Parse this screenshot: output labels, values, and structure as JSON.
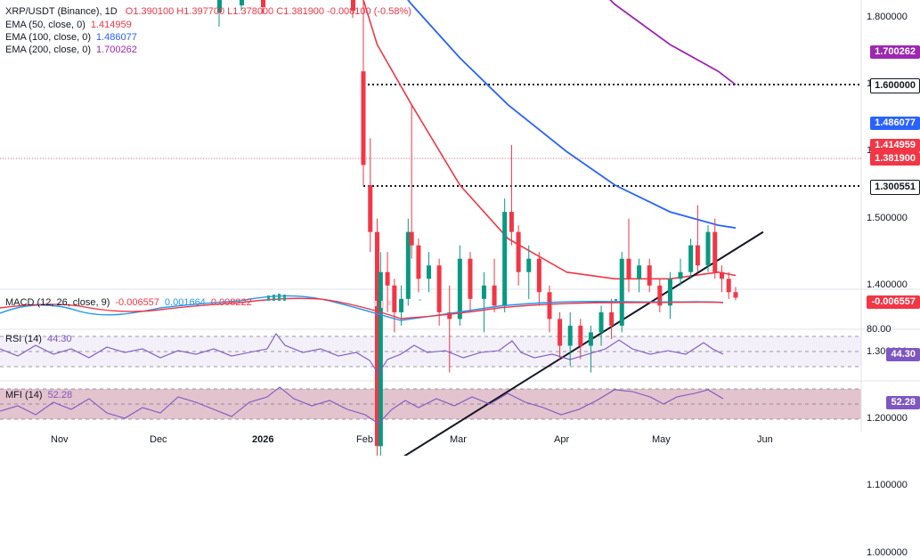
{
  "header": {
    "symbol": "XRP/USDT (Binance), 1D",
    "ohlc": "O1.390100  H1.397700  L1.378000  C1.381900  -0.008100 (-0.58%)",
    "ema50": {
      "label": "EMA (50, close, 0)",
      "value": "1.414959"
    },
    "ema100": {
      "label": "EMA (100, close, 0)",
      "value": "1.486077"
    },
    "ema200": {
      "label": "EMA (200, close, 0)",
      "value": "1.700262"
    }
  },
  "price_tags": {
    "ema200": "1.700262",
    "level_top": "1.600000",
    "ema100": "1.486077",
    "ema50": "1.414959",
    "last": "1.381900",
    "level_bottom": "1.300551"
  },
  "indicators": {
    "macd": {
      "label": "MACD (12, 26, close, 9)",
      "hist": "-0.006557",
      "macd": "0.001664",
      "signal": "0.008222",
      "tag": "-0.006557"
    },
    "rsi": {
      "label": "RSI (14)",
      "value": "44.30",
      "tag": "44.30",
      "level": "80.00"
    },
    "mfi": {
      "label": "MFI (14)",
      "value": "52.28",
      "tag": "52.28"
    }
  },
  "colors": {
    "up": "#089981",
    "down": "#f23645",
    "ema50": "#f23645",
    "ema100": "#2962ff",
    "ema200": "#9c27b0",
    "macd": "#2196f3",
    "signal": "#f23645",
    "rsi": "#7e57c2",
    "mfi": "#7e57c2"
  },
  "chart_data": {
    "type": "line",
    "title": "XRP/USDT (Binance), 1D",
    "price_axis_ticks": [
      "1.800000",
      "1.700000",
      "1.600000",
      "1.500000",
      "1.400000",
      "1.300000",
      "1.200000",
      "1.100000",
      "1.000000"
    ],
    "time_axis_ticks": [
      "Nov",
      "Dec",
      "2026",
      "Feb",
      "Mar",
      "Apr",
      "May",
      "Jun"
    ],
    "ylim": [
      0.97,
      1.88
    ],
    "last_close": 1.3819,
    "horizontal_levels": [
      1.6,
      1.300551
    ],
    "trendline": {
      "from": [
        "2026-02-02",
        1.11
      ],
      "to": [
        "2026-05-28",
        1.48
      ]
    },
    "series": [
      {
        "name": "EMA (50, close, 0)",
        "x": [
          "2026-01-30",
          "2026-02-05",
          "2026-02-15",
          "2026-03-01",
          "2026-03-15",
          "2026-04-01",
          "2026-04-15",
          "2026-05-01",
          "2026-05-15",
          "2026-05-20"
        ],
        "values": [
          1.86,
          1.76,
          1.67,
          1.55,
          1.47,
          1.42,
          1.41,
          1.41,
          1.42,
          1.415
        ]
      },
      {
        "name": "EMA (100, close, 0)",
        "x": [
          "2026-02-01",
          "2026-02-15",
          "2026-03-01",
          "2026-03-15",
          "2026-04-01",
          "2026-04-15",
          "2026-05-01",
          "2026-05-15",
          "2026-05-20"
        ],
        "values": [
          1.91,
          1.82,
          1.74,
          1.67,
          1.6,
          1.55,
          1.51,
          1.49,
          1.486
        ]
      },
      {
        "name": "EMA (200, close, 0)",
        "x": [
          "2026-04-05",
          "2026-04-15",
          "2026-05-01",
          "2026-05-15",
          "2026-05-20"
        ],
        "values": [
          1.87,
          1.82,
          1.76,
          1.72,
          1.7
        ]
      }
    ],
    "candles": [
      {
        "date": "2026-02-01",
        "o": 1.72,
        "h": 1.83,
        "l": 1.55,
        "c": 1.58
      },
      {
        "date": "2026-02-03",
        "o": 1.55,
        "h": 1.62,
        "l": 1.45,
        "c": 1.48
      },
      {
        "date": "2026-02-05",
        "o": 1.48,
        "h": 1.5,
        "l": 1.11,
        "c": 1.16
      },
      {
        "date": "2026-02-06",
        "o": 1.16,
        "h": 1.45,
        "l": 1.12,
        "c": 1.42
      },
      {
        "date": "2026-02-08",
        "o": 1.42,
        "h": 1.45,
        "l": 1.36,
        "c": 1.4
      },
      {
        "date": "2026-02-10",
        "o": 1.4,
        "h": 1.41,
        "l": 1.33,
        "c": 1.36
      },
      {
        "date": "2026-02-12",
        "o": 1.36,
        "h": 1.4,
        "l": 1.34,
        "c": 1.38
      },
      {
        "date": "2026-02-14",
        "o": 1.38,
        "h": 1.5,
        "l": 1.37,
        "c": 1.48
      },
      {
        "date": "2026-02-15",
        "o": 1.48,
        "h": 1.67,
        "l": 1.44,
        "c": 1.46
      },
      {
        "date": "2026-02-17",
        "o": 1.46,
        "h": 1.47,
        "l": 1.39,
        "c": 1.41
      },
      {
        "date": "2026-02-20",
        "o": 1.41,
        "h": 1.45,
        "l": 1.39,
        "c": 1.43
      },
      {
        "date": "2026-02-23",
        "o": 1.43,
        "h": 1.44,
        "l": 1.34,
        "c": 1.36
      },
      {
        "date": "2026-02-26",
        "o": 1.36,
        "h": 1.4,
        "l": 1.27,
        "c": 1.35
      },
      {
        "date": "2026-03-01",
        "o": 1.35,
        "h": 1.46,
        "l": 1.34,
        "c": 1.44
      },
      {
        "date": "2026-03-04",
        "o": 1.44,
        "h": 1.45,
        "l": 1.36,
        "c": 1.38
      },
      {
        "date": "2026-03-08",
        "o": 1.38,
        "h": 1.42,
        "l": 1.33,
        "c": 1.4
      },
      {
        "date": "2026-03-11",
        "o": 1.4,
        "h": 1.44,
        "l": 1.36,
        "c": 1.37
      },
      {
        "date": "2026-03-14",
        "o": 1.37,
        "h": 1.53,
        "l": 1.36,
        "c": 1.51
      },
      {
        "date": "2026-03-16",
        "o": 1.51,
        "h": 1.61,
        "l": 1.46,
        "c": 1.48
      },
      {
        "date": "2026-03-18",
        "o": 1.48,
        "h": 1.49,
        "l": 1.4,
        "c": 1.42
      },
      {
        "date": "2026-03-21",
        "o": 1.42,
        "h": 1.46,
        "l": 1.38,
        "c": 1.44
      },
      {
        "date": "2026-03-24",
        "o": 1.44,
        "h": 1.45,
        "l": 1.37,
        "c": 1.39
      },
      {
        "date": "2026-03-27",
        "o": 1.39,
        "h": 1.4,
        "l": 1.33,
        "c": 1.35
      },
      {
        "date": "2026-03-30",
        "o": 1.35,
        "h": 1.36,
        "l": 1.29,
        "c": 1.31
      },
      {
        "date": "2026-04-02",
        "o": 1.31,
        "h": 1.36,
        "l": 1.28,
        "c": 1.34
      },
      {
        "date": "2026-04-05",
        "o": 1.34,
        "h": 1.35,
        "l": 1.29,
        "c": 1.31
      },
      {
        "date": "2026-04-08",
        "o": 1.31,
        "h": 1.34,
        "l": 1.27,
        "c": 1.33
      },
      {
        "date": "2026-04-11",
        "o": 1.33,
        "h": 1.37,
        "l": 1.31,
        "c": 1.36
      },
      {
        "date": "2026-04-14",
        "o": 1.36,
        "h": 1.38,
        "l": 1.32,
        "c": 1.34
      },
      {
        "date": "2026-04-17",
        "o": 1.34,
        "h": 1.45,
        "l": 1.33,
        "c": 1.44
      },
      {
        "date": "2026-04-19",
        "o": 1.44,
        "h": 1.5,
        "l": 1.39,
        "c": 1.41
      },
      {
        "date": "2026-04-22",
        "o": 1.41,
        "h": 1.44,
        "l": 1.39,
        "c": 1.43
      },
      {
        "date": "2026-04-25",
        "o": 1.43,
        "h": 1.44,
        "l": 1.39,
        "c": 1.4
      },
      {
        "date": "2026-04-28",
        "o": 1.4,
        "h": 1.41,
        "l": 1.36,
        "c": 1.37
      },
      {
        "date": "2026-05-01",
        "o": 1.37,
        "h": 1.42,
        "l": 1.35,
        "c": 1.41
      },
      {
        "date": "2026-05-04",
        "o": 1.41,
        "h": 1.44,
        "l": 1.4,
        "c": 1.42
      },
      {
        "date": "2026-05-07",
        "o": 1.42,
        "h": 1.47,
        "l": 1.41,
        "c": 1.46
      },
      {
        "date": "2026-05-09",
        "o": 1.46,
        "h": 1.52,
        "l": 1.42,
        "c": 1.43
      },
      {
        "date": "2026-05-12",
        "o": 1.43,
        "h": 1.49,
        "l": 1.42,
        "c": 1.48
      },
      {
        "date": "2026-05-14",
        "o": 1.48,
        "h": 1.5,
        "l": 1.41,
        "c": 1.42
      },
      {
        "date": "2026-05-16",
        "o": 1.42,
        "h": 1.43,
        "l": 1.39,
        "c": 1.41
      },
      {
        "date": "2026-05-18",
        "o": 1.41,
        "h": 1.42,
        "l": 1.38,
        "c": 1.39
      },
      {
        "date": "2026-05-20",
        "o": 1.3901,
        "h": 1.3977,
        "l": 1.378,
        "c": 1.3819
      }
    ]
  }
}
